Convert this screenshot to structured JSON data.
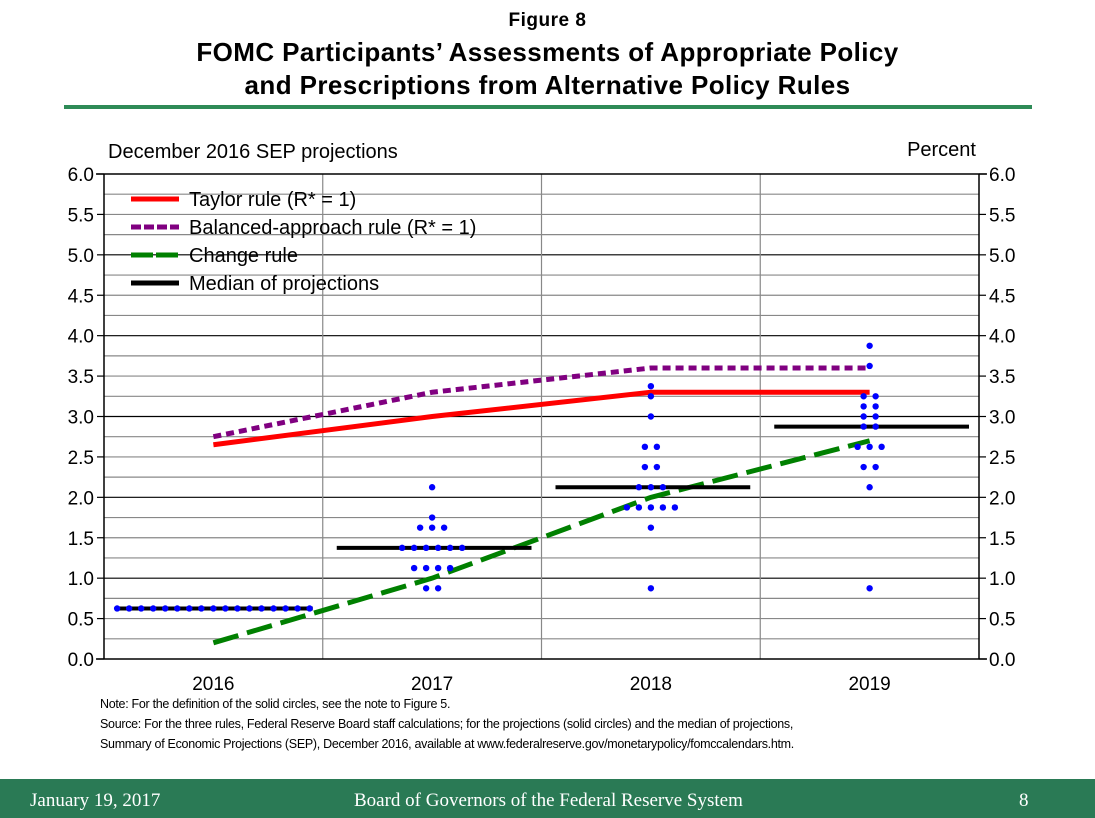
{
  "figure_label": "Figure 8",
  "title_line1": "FOMC Participants’ Assessments of Appropriate Policy",
  "title_line2": "and Prescriptions from Alternative Policy Rules",
  "notes": {
    "note": "Note: For the definition of the solid circles, see the note to Figure 5.",
    "source_line1": "Source: For the three rules, Federal Reserve Board staff calculations; for the projections (solid circles) and the median of projections,",
    "source_line2": "Summary of Economic Projections (SEP), December 2016, available at www.federalreserve.gov/monetarypolicy/fomccalendars.htm."
  },
  "footer": {
    "date": "January 19, 2017",
    "org": "Board of Governors of the Federal Reserve System",
    "page": "8"
  },
  "colors": {
    "taylor": "#ff0000",
    "balanced": "#800080",
    "change": "#008000",
    "median": "#000000",
    "dots": "#0000ff",
    "rule": "#2e8b57",
    "footer_bg": "#2a7a55"
  },
  "chart_data": {
    "type": "scatter",
    "subtitle": "December 2016 SEP projections",
    "ylabel": "Percent",
    "xlabel": "",
    "categories": [
      "2016",
      "2017",
      "2018",
      "2019"
    ],
    "ylim": [
      0,
      6
    ],
    "yticks": [
      "0.0",
      "0.5",
      "1.0",
      "1.5",
      "2.0",
      "2.5",
      "3.0",
      "3.5",
      "4.0",
      "4.5",
      "5.0",
      "5.5",
      "6.0"
    ],
    "grid": true,
    "legend_position": "top-left",
    "legend": [
      {
        "key": "taylor",
        "label": "Taylor rule (R* = 1)",
        "style": "solid"
      },
      {
        "key": "balanced",
        "label": "Balanced-approach rule (R* = 1)",
        "style": "dotted"
      },
      {
        "key": "change",
        "label": "Change rule",
        "style": "dashed"
      },
      {
        "key": "median",
        "label": "Median of projections",
        "style": "solid"
      }
    ],
    "series": [
      {
        "name": "Taylor rule (R* = 1)",
        "key": "taylor",
        "values": [
          2.65,
          3.0,
          3.3,
          3.3
        ]
      },
      {
        "name": "Balanced-approach rule (R* = 1)",
        "key": "balanced",
        "values": [
          2.75,
          3.3,
          3.6,
          3.6
        ]
      },
      {
        "name": "Change rule",
        "key": "change",
        "values": [
          0.2,
          1.0,
          2.0,
          2.7
        ]
      },
      {
        "name": "Median of projections",
        "key": "median",
        "values": [
          0.625,
          1.375,
          2.125,
          2.875
        ]
      }
    ],
    "projections": [
      {
        "year": "2016",
        "levels": [
          {
            "value": 0.625,
            "count": 17
          }
        ]
      },
      {
        "year": "2017",
        "levels": [
          {
            "value": 2.125,
            "count": 1
          },
          {
            "value": 1.75,
            "count": 1
          },
          {
            "value": 1.625,
            "count": 3
          },
          {
            "value": 1.375,
            "count": 6
          },
          {
            "value": 1.125,
            "count": 4
          },
          {
            "value": 0.875,
            "count": 2
          }
        ]
      },
      {
        "year": "2018",
        "levels": [
          {
            "value": 3.375,
            "count": 1
          },
          {
            "value": 3.25,
            "count": 1
          },
          {
            "value": 3.0,
            "count": 1
          },
          {
            "value": 2.625,
            "count": 2
          },
          {
            "value": 2.375,
            "count": 2
          },
          {
            "value": 2.125,
            "count": 3
          },
          {
            "value": 1.875,
            "count": 5
          },
          {
            "value": 1.625,
            "count": 1
          },
          {
            "value": 0.875,
            "count": 1
          }
        ]
      },
      {
        "year": "2019",
        "levels": [
          {
            "value": 3.875,
            "count": 1
          },
          {
            "value": 3.625,
            "count": 1
          },
          {
            "value": 3.25,
            "count": 2
          },
          {
            "value": 3.125,
            "count": 2
          },
          {
            "value": 3.0,
            "count": 2
          },
          {
            "value": 2.875,
            "count": 2
          },
          {
            "value": 2.625,
            "count": 3
          },
          {
            "value": 2.375,
            "count": 2
          },
          {
            "value": 2.125,
            "count": 1
          },
          {
            "value": 0.875,
            "count": 1
          }
        ]
      }
    ]
  }
}
